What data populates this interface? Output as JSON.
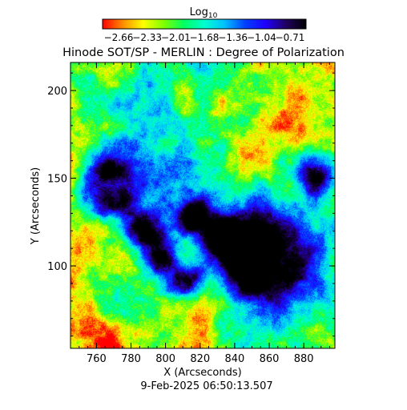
{
  "colorbar": {
    "label_base": "Log",
    "label_sub": "10",
    "ticks": [
      "-2.66",
      "-2.33",
      "-2.01",
      "-1.68",
      "-1.36",
      "-1.04",
      "-0.71"
    ],
    "range": [
      -2.66,
      -0.71
    ],
    "colors": [
      "#ff0000",
      "#ff8c00",
      "#ffff00",
      "#80ff00",
      "#00ff60",
      "#00ffd0",
      "#00c0ff",
      "#0040ff",
      "#2000ff",
      "#200060",
      "#000000"
    ]
  },
  "title": "Hinode SOT/SP - MERLIN : Degree of Polarization",
  "x_axis": {
    "label": "X (Arcseconds)",
    "range": [
      745,
      898
    ],
    "ticks": [
      "760",
      "780",
      "800",
      "820",
      "840",
      "860",
      "880"
    ]
  },
  "y_axis": {
    "label": "Y (Arcseconds)",
    "range": [
      53,
      216
    ],
    "ticks": [
      "100",
      "150",
      "200"
    ]
  },
  "timestamp": "9-Feb-2025 06:50:13.507",
  "features": [
    {
      "kind": "sunspot",
      "x": 766,
      "y": 144,
      "r": 9
    },
    {
      "kind": "sunspot",
      "x": 859,
      "y": 108,
      "r": 14
    },
    {
      "kind": "pore",
      "x": 885,
      "y": 153,
      "r": 5
    },
    {
      "kind": "pore",
      "x": 797,
      "y": 106,
      "r": 5
    },
    {
      "kind": "pore",
      "x": 833,
      "y": 118,
      "r": 4
    },
    {
      "kind": "pore",
      "x": 815,
      "y": 128,
      "r": 4
    },
    {
      "kind": "pore",
      "x": 787,
      "y": 120,
      "r": 5
    },
    {
      "kind": "pore",
      "x": 812,
      "y": 91,
      "r": 4
    },
    {
      "kind": "pore",
      "x": 845,
      "y": 111,
      "r": 5
    }
  ]
}
